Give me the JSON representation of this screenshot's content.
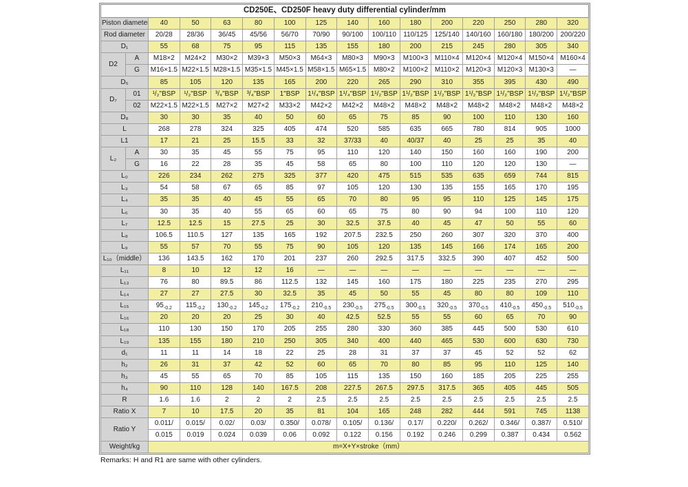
{
  "title": "CD250E、CD250F heavy duty differential cylinder/mm",
  "remarks": "Remarks: H and R1 are same with other cylinders.",
  "colors": {
    "highlight_yellow": "#f3efa2",
    "label_gray": "#d4d4d4",
    "grid_border": "#a0a0a0"
  },
  "weight_row": {
    "label": "Weight/kg",
    "formula": "m=X+Y×stroke（mm）"
  },
  "table": {
    "rows": [
      {
        "label": "Piston diameter",
        "fill": "y",
        "cells": [
          "40",
          "50",
          "63",
          "80",
          "100",
          "125",
          "140",
          "160",
          "180",
          "200",
          "220",
          "250",
          "280",
          "320"
        ]
      },
      {
        "label": "Rod diameter",
        "fill": "w",
        "cells": [
          "20/28",
          "28/36",
          "36/45",
          "45/56",
          "56/70",
          "70/90",
          "90/100",
          "100/110",
          "110/125",
          "125/140",
          "140/160",
          "160/180",
          "180/200",
          "200/220"
        ]
      },
      {
        "label": "D₁",
        "fill": "y",
        "cells": [
          "55",
          "68",
          "75",
          "95",
          "115",
          "135",
          "155",
          "180",
          "200",
          "215",
          "245",
          "280",
          "305",
          "340"
        ]
      },
      {
        "group": "D2",
        "first": true,
        "sub": "A",
        "fill": "w",
        "cells": [
          "M18×2",
          "M24×2",
          "M30×2",
          "M39×3",
          "M50×3",
          "M64×3",
          "M80×3",
          "M90×3",
          "M100×3",
          "M110×4",
          "M120×4",
          "M120×4",
          "M150×4",
          "M160×4"
        ]
      },
      {
        "group": "D2",
        "sub": "G",
        "fill": "w",
        "cells": [
          "M16×1.5",
          "M22×1.5",
          "M28×1.5",
          "M35×1.5",
          "M45×1.5",
          "M58×1.5",
          "M65×1.5",
          "M80×2",
          "M100×2",
          "M110×2",
          "M120×3",
          "M120×3",
          "M130×3",
          "—"
        ]
      },
      {
        "label": "D₅",
        "fill": "y",
        "cells": [
          "85",
          "105",
          "120",
          "135",
          "165",
          "200",
          "220",
          "265",
          "290",
          "310",
          "355",
          "395",
          "430",
          "490"
        ]
      },
      {
        "group": "D₇",
        "first": true,
        "sub": "01",
        "fill": "y",
        "cells": [
          "¹/₂\"BSP",
          "¹/₂\"BSP",
          "³/₄\"BSP",
          "³/₄\"BSP",
          "1\"BSP",
          "1¹/₄\"BSP",
          "1¹/₄\"BSP",
          "1¹/₂\"BSP",
          "1¹/₂\"BSP",
          "1¹/₂\"BSP",
          "1¹/₂\"BSP",
          "1¹/₂\"BSP",
          "1¹/₂\"BSP",
          "1¹/₂\"BSP"
        ]
      },
      {
        "group": "D₇",
        "sub": "02",
        "fill": "w",
        "cells": [
          "M22×1.5",
          "M22×1.5",
          "M27×2",
          "M27×2",
          "M33×2",
          "M42×2",
          "M42×2",
          "M48×2",
          "M48×2",
          "M48×2",
          "M48×2",
          "M48×2",
          "M48×2",
          "M48×2"
        ]
      },
      {
        "label": "D₈",
        "fill": "y",
        "cells": [
          "30",
          "30",
          "35",
          "40",
          "50",
          "60",
          "65",
          "75",
          "85",
          "90",
          "100",
          "110",
          "130",
          "160"
        ]
      },
      {
        "label": "L",
        "fill": "w",
        "cells": [
          "268",
          "278",
          "324",
          "325",
          "405",
          "474",
          "520",
          "585",
          "635",
          "665",
          "780",
          "814",
          "905",
          "1000"
        ]
      },
      {
        "label": "L1",
        "fill": "y",
        "cells": [
          "17",
          "21",
          "25",
          "15.5",
          "33",
          "32",
          "37/33",
          "40",
          "40/37",
          "40",
          "25",
          "25",
          "35",
          "40"
        ]
      },
      {
        "group": "L₂",
        "first": true,
        "sub": "A",
        "fill": "w",
        "cells": [
          "30",
          "35",
          "45",
          "55",
          "75",
          "95",
          "110",
          "120",
          "140",
          "150",
          "160",
          "160",
          "190",
          "200"
        ]
      },
      {
        "group": "L₂",
        "sub": "G",
        "fill": "w",
        "cells": [
          "16",
          "22",
          "28",
          "35",
          "45",
          "58",
          "65",
          "80",
          "100",
          "110",
          "120",
          "120",
          "130",
          "—"
        ]
      },
      {
        "label": "L₀",
        "fill": "y",
        "cells": [
          "226",
          "234",
          "262",
          "275",
          "325",
          "377",
          "420",
          "475",
          "515",
          "535",
          "635",
          "659",
          "744",
          "815"
        ]
      },
      {
        "label": "L₃",
        "fill": "w",
        "cells": [
          "54",
          "58",
          "67",
          "65",
          "85",
          "97",
          "105",
          "120",
          "130",
          "135",
          "155",
          "165",
          "170",
          "195"
        ]
      },
      {
        "label": "L₄",
        "fill": "y",
        "cells": [
          "35",
          "35",
          "40",
          "45",
          "55",
          "65",
          "70",
          "80",
          "95",
          "95",
          "110",
          "125",
          "145",
          "175"
        ]
      },
      {
        "label": "L₆",
        "fill": "w",
        "cells": [
          "30",
          "35",
          "40",
          "55",
          "65",
          "60",
          "65",
          "75",
          "80",
          "90",
          "94",
          "100",
          "110",
          "120"
        ]
      },
      {
        "label": "L₇",
        "fill": "y",
        "cells": [
          "12.5",
          "12.5",
          "15",
          "27.5",
          "25",
          "30",
          "32.5",
          "37.5",
          "40",
          "45",
          "47",
          "50",
          "55",
          "60"
        ]
      },
      {
        "label": "L₈",
        "fill": "w",
        "cells": [
          "106.5",
          "110.5",
          "127",
          "135",
          "165",
          "192",
          "207.5",
          "232.5",
          "250",
          "260",
          "307",
          "320",
          "370",
          "400"
        ]
      },
      {
        "label": "L₉",
        "fill": "y",
        "cells": [
          "55",
          "57",
          "70",
          "55",
          "75",
          "90",
          "105",
          "120",
          "135",
          "145",
          "166",
          "174",
          "165",
          "200"
        ]
      },
      {
        "label": "L₁₀（middle）",
        "fill": "w",
        "cells": [
          "136",
          "143.5",
          "162",
          "170",
          "201",
          "237",
          "260",
          "292.5",
          "317.5",
          "332.5",
          "390",
          "407",
          "452",
          "500"
        ]
      },
      {
        "label": "L₁₁",
        "fill": "y",
        "cells": [
          "8",
          "10",
          "12",
          "12",
          "16",
          "—",
          "—",
          "—",
          "—",
          "—",
          "—",
          "—",
          "—",
          "—"
        ]
      },
      {
        "label": "L₁₃",
        "fill": "w",
        "cells": [
          "76",
          "80",
          "89.5",
          "86",
          "112.5",
          "132",
          "145",
          "160",
          "175",
          "180",
          "225",
          "235",
          "270",
          "295"
        ]
      },
      {
        "label": "L₁₄",
        "fill": "y",
        "cells": [
          "27",
          "27",
          "27.5",
          "30",
          "32.5",
          "35",
          "45",
          "50",
          "55",
          "45",
          "80",
          "80",
          "109",
          "110"
        ]
      },
      {
        "label": "L₁₅",
        "fill": "w",
        "cells": [
          {
            "t": "95",
            "sub": "-0.2"
          },
          {
            "t": "115",
            "sub": "-0.2"
          },
          {
            "t": "130",
            "sub": "-0.2"
          },
          {
            "t": "145",
            "sub": "-0.2"
          },
          {
            "t": "175",
            "sub": "-0.2"
          },
          {
            "t": "210",
            "sub": "-0.5"
          },
          {
            "t": "230",
            "sub": "-0.5"
          },
          {
            "t": "275",
            "sub": "-0.5"
          },
          {
            "t": "300",
            "sub": "-0.5"
          },
          {
            "t": "320",
            "sub": "-0.5"
          },
          {
            "t": "370",
            "sub": "-0.5"
          },
          {
            "t": "410",
            "sub": "-0.5"
          },
          {
            "t": "450",
            "sub": "-0.5"
          },
          {
            "t": "510",
            "sub": "-0.5"
          }
        ]
      },
      {
        "label": "L₁₆",
        "fill": "y",
        "cells": [
          "20",
          "20",
          "20",
          "25",
          "30",
          "40",
          "42.5",
          "52.5",
          "55",
          "55",
          "60",
          "65",
          "70",
          "90"
        ]
      },
      {
        "label": "L₁₈",
        "fill": "w",
        "cells": [
          "110",
          "130",
          "150",
          "170",
          "205",
          "255",
          "280",
          "330",
          "360",
          "385",
          "445",
          "500",
          "530",
          "610"
        ]
      },
      {
        "label": "L₁₉",
        "fill": "y",
        "cells": [
          "135",
          "155",
          "180",
          "210",
          "250",
          "305",
          "340",
          "400",
          "440",
          "465",
          "530",
          "600",
          "630",
          "730"
        ]
      },
      {
        "label": "d₁",
        "fill": "w",
        "cells": [
          "11",
          "11",
          "14",
          "18",
          "22",
          "25",
          "28",
          "31",
          "37",
          "37",
          "45",
          "52",
          "52",
          "62"
        ]
      },
      {
        "label": "h₂",
        "fill": "y",
        "cells": [
          "26",
          "31",
          "37",
          "42",
          "52",
          "60",
          "65",
          "70",
          "80",
          "85",
          "95",
          "110",
          "125",
          "140"
        ]
      },
      {
        "label": "h₃",
        "fill": "w",
        "cells": [
          "45",
          "55",
          "65",
          "70",
          "85",
          "105",
          "115",
          "135",
          "150",
          "160",
          "185",
          "205",
          "225",
          "255"
        ]
      },
      {
        "label": "h₄",
        "fill": "y",
        "cells": [
          "90",
          "110",
          "128",
          "140",
          "167.5",
          "208",
          "227.5",
          "267.5",
          "297.5",
          "317.5",
          "365",
          "405",
          "445",
          "505"
        ]
      },
      {
        "label": "R",
        "fill": "w",
        "cells": [
          "1.6",
          "1.6",
          "2",
          "2",
          "2",
          "2.5",
          "2.5",
          "2.5",
          "2.5",
          "2.5",
          "2.5",
          "2.5",
          "2.5",
          "2.5"
        ]
      },
      {
        "label": "Ratio X",
        "fill": "y",
        "cells": [
          "7",
          "10",
          "17.5",
          "20",
          "35",
          "81",
          "104",
          "165",
          "248",
          "282",
          "444",
          "591",
          "745",
          "1138"
        ]
      },
      {
        "group": "Ratio Y",
        "first": true,
        "sub": null,
        "fill": "w",
        "cells": [
          "0.011/",
          "0.015/",
          "0.02/",
          "0.03/",
          "0.350/",
          "0.078/",
          "0.105/",
          "0.136/",
          "0.17/",
          "0.220/",
          "0.262/",
          "0.346/",
          "0.387/",
          "0.510/"
        ]
      },
      {
        "group": "Ratio Y",
        "sub": null,
        "fill": "w",
        "cells": [
          "0.015",
          "0.019",
          "0.024",
          "0.039",
          "0.06",
          "0.092",
          "0.122",
          "0.156",
          "0.192",
          "0.246",
          "0.299",
          "0.387",
          "0.434",
          "0.562"
        ]
      },
      {
        "label": "Weight/kg",
        "fill": "y",
        "merged": true
      }
    ]
  }
}
